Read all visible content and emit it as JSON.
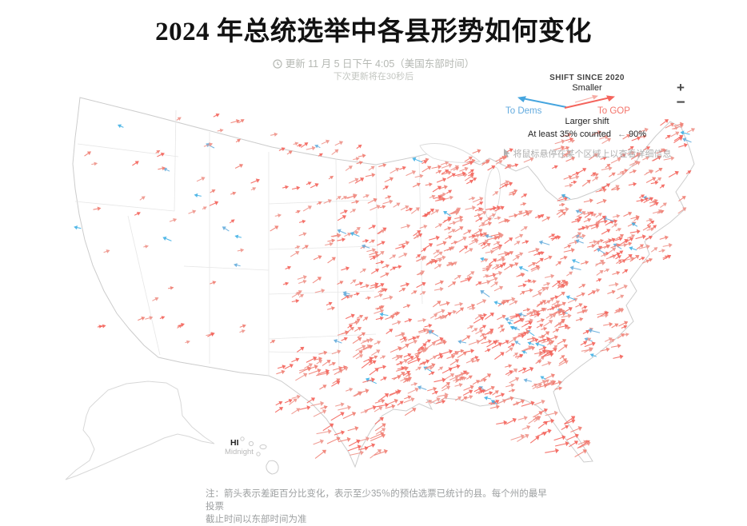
{
  "title": "2024 年总统选举中各县形势如何变化",
  "update": {
    "line1": "更新 11 月 5 日下午 4:05（美国东部时间）",
    "line2": "下次更新将在30秒后"
  },
  "legend": {
    "heading": "SHIFT SINCE 2020",
    "smaller": "Smaller",
    "to_dems": "To Dems",
    "to_gop": "To GOP",
    "larger": "Larger shift",
    "counted": "At least 35% counted",
    "counted_arrow": "←",
    "counted_value": "90%",
    "hint": "将鼠标悬停在某个区域上以查看详细信息"
  },
  "zoom_controls": {
    "zoom_in": "+",
    "zoom_out": "−"
  },
  "map_labels": {
    "hawaii": "HI",
    "hawaii_sub": "Midnight"
  },
  "note": {
    "line1": "注：箭头表示差距百分比变化，表示至少35％的预估选票已统计的县。每个州的最早投票",
    "line2": "截止时间以东部时间为准"
  },
  "colors": {
    "gop_reds": [
      "#f4645c",
      "#f07f74",
      "#ef958c"
    ],
    "dem_blues": [
      "#45b2e6",
      "#68aedd"
    ],
    "gop_text": "#f4756c",
    "dem_text": "#63abdf",
    "legend_small_red": "#f6aba4",
    "outline": "#cccccc",
    "state_line": "#e6e6e6",
    "muted_text": "#b5b8b3",
    "note_text": "#9c9fa0"
  },
  "map": {
    "seed": 20241105,
    "arrow_field": {
      "region_fields": [
        "x0",
        "y0",
        "x1",
        "y1",
        "count",
        "blue_ratio",
        "min_len",
        "max_len"
      ],
      "regions": [
        [
          690,
          160,
          850,
          280,
          95,
          0.05,
          5,
          12
        ],
        [
          660,
          270,
          800,
          340,
          60,
          0.05,
          5,
          12
        ],
        [
          600,
          290,
          780,
          390,
          95,
          0.05,
          5,
          12
        ],
        [
          640,
          390,
          780,
          450,
          70,
          0.06,
          5,
          13
        ],
        [
          540,
          380,
          700,
          500,
          125,
          0.05,
          5,
          13
        ],
        [
          560,
          485,
          660,
          510,
          15,
          0.02,
          6,
          12
        ],
        [
          612,
          505,
          700,
          532,
          13,
          0.02,
          7,
          15
        ],
        [
          632,
          528,
          715,
          554,
          12,
          0.0,
          8,
          16
        ],
        [
          655,
          550,
          735,
          576,
          10,
          0.0,
          9,
          17
        ],
        [
          540,
          190,
          660,
          300,
          70,
          0.05,
          5,
          12
        ],
        [
          520,
          260,
          620,
          360,
          60,
          0.05,
          5,
          12
        ],
        [
          430,
          200,
          560,
          390,
          90,
          0.05,
          5,
          12
        ],
        [
          340,
          180,
          480,
          390,
          80,
          0.04,
          4,
          11
        ],
        [
          420,
          390,
          560,
          450,
          60,
          0.04,
          5,
          13
        ],
        [
          490,
          440,
          580,
          505,
          40,
          0.04,
          5,
          13
        ],
        [
          340,
          440,
          520,
          520,
          75,
          0.03,
          6,
          15
        ],
        [
          390,
          520,
          470,
          575,
          24,
          0.0,
          10,
          18
        ],
        [
          160,
          140,
          340,
          430,
          48,
          0.14,
          4,
          10
        ],
        [
          100,
          130,
          175,
          420,
          9,
          0.3,
          4,
          8
        ],
        [
          810,
          150,
          865,
          230,
          14,
          0.05,
          5,
          11
        ],
        [
          640,
          395,
          668,
          445,
          9,
          0.85,
          4,
          9
        ],
        [
          760,
          280,
          832,
          330,
          26,
          0.06,
          5,
          12
        ]
      ]
    }
  }
}
